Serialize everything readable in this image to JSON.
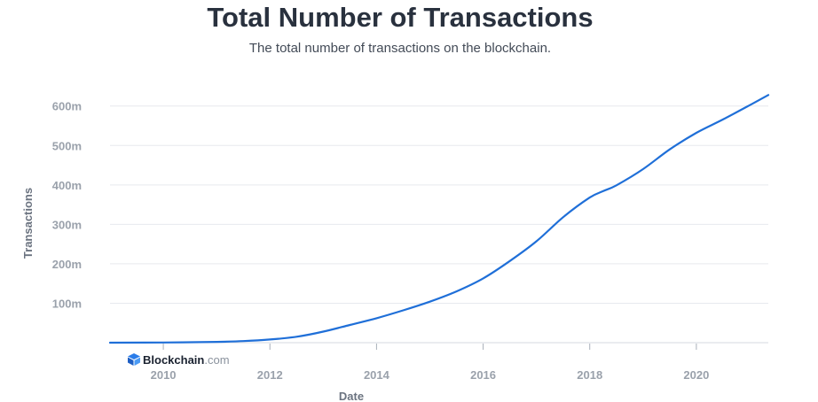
{
  "chart_data": {
    "type": "line",
    "title": "Total Number of Transactions",
    "subtitle": "The total number of transactions on the blockchain.",
    "xlabel": "Date",
    "ylabel": "Transactions",
    "x_ticks": [
      "2010",
      "2012",
      "2014",
      "2016",
      "2018",
      "2020"
    ],
    "y_ticks": [
      "100m",
      "200m",
      "300m",
      "400m",
      "500m",
      "600m"
    ],
    "xlim": [
      2009.0,
      2021.35
    ],
    "ylim": [
      0,
      660
    ],
    "y_unit": "millions",
    "grid": true,
    "series": [
      {
        "color": "#1f6fd8",
        "x": [
          2009.0,
          2010.0,
          2011.0,
          2011.5,
          2012.0,
          2012.5,
          2013.0,
          2013.5,
          2014.0,
          2014.5,
          2015.0,
          2015.5,
          2016.0,
          2016.5,
          2017.0,
          2017.5,
          2018.0,
          2018.25,
          2018.5,
          2019.0,
          2019.5,
          2020.0,
          2020.5,
          2021.0,
          2021.35
        ],
        "values": [
          0.1,
          0.5,
          2,
          4,
          8,
          15,
          28,
          45,
          62,
          82,
          104,
          130,
          163,
          207,
          257,
          318,
          368,
          384,
          399,
          440,
          490,
          532,
          566,
          602,
          628
        ]
      }
    ]
  },
  "watermark": {
    "brand": "Blockchain",
    "suffix": ".com"
  }
}
